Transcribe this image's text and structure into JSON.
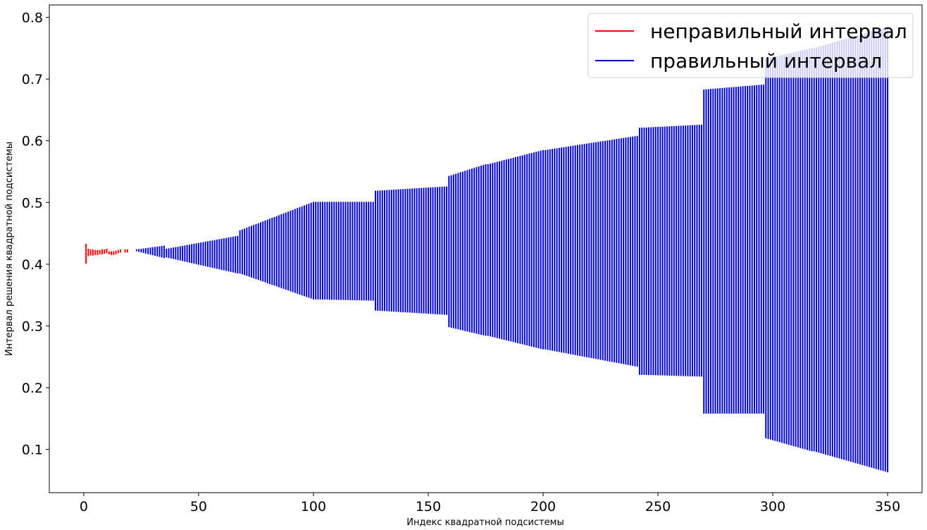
{
  "chart_data": {
    "type": "errorbar-interval",
    "title": "",
    "xlabel": "Индекс квадратной подсистемы",
    "ylabel": "Интервал решения квадратной подсистемы",
    "xlim": [
      -15,
      365
    ],
    "ylim": [
      0.03,
      0.82
    ],
    "xticks": [
      0,
      50,
      100,
      150,
      200,
      250,
      300,
      350
    ],
    "xtick_labels": [
      "0",
      "50",
      "100",
      "150",
      "200",
      "250",
      "300",
      "350"
    ],
    "yticks": [
      0.1,
      0.2,
      0.3,
      0.4,
      0.5,
      0.6,
      0.7,
      0.8
    ],
    "ytick_labels": [
      "0.1",
      "0.2",
      "0.3",
      "0.4",
      "0.5",
      "0.6",
      "0.7",
      "0.8"
    ],
    "legend": {
      "placement": "top-right",
      "entries": [
        {
          "label": "неправильный интервал",
          "color": "#ff0000"
        },
        {
          "label": "правильный интервал",
          "color": "#0000cc"
        }
      ]
    },
    "series": [
      {
        "name": "неправильный интервал",
        "color": "#ff0000",
        "x": [
          1,
          2,
          3,
          4,
          5,
          6,
          7,
          8,
          9,
          10,
          11,
          12,
          13,
          14,
          15,
          16,
          18,
          19
        ],
        "lower": [
          0.401,
          0.413,
          0.414,
          0.414,
          0.415,
          0.415,
          0.416,
          0.416,
          0.417,
          0.418,
          0.416,
          0.415,
          0.415,
          0.416,
          0.418,
          0.419,
          0.419,
          0.419
        ],
        "upper": [
          0.433,
          0.425,
          0.424,
          0.424,
          0.423,
          0.423,
          0.423,
          0.424,
          0.424,
          0.425,
          0.421,
          0.421,
          0.421,
          0.422,
          0.423,
          0.424,
          0.424,
          0.424
        ]
      },
      {
        "name": "правильный интервал",
        "color": "#0000cc",
        "segments": [
          {
            "from": 23,
            "to": 35,
            "lower": [
              0.421,
              0.41
            ],
            "upper": [
              0.424,
              0.43
            ]
          },
          {
            "from": 36,
            "to": 67,
            "lower": [
              0.411,
              0.385
            ],
            "upper": [
              0.425,
              0.446
            ]
          },
          {
            "from": 68,
            "to": 100,
            "lower": [
              0.385,
              0.343
            ],
            "upper": [
              0.455,
              0.501
            ]
          },
          {
            "from": 101,
            "to": 126,
            "lower": [
              0.343,
              0.341
            ],
            "upper": [
              0.501,
              0.501
            ]
          },
          {
            "from": 127,
            "to": 158,
            "lower": [
              0.325,
              0.318
            ],
            "upper": [
              0.519,
              0.526
            ]
          },
          {
            "from": 159,
            "to": 175,
            "lower": [
              0.298,
              0.284
            ],
            "upper": [
              0.543,
              0.562
            ]
          },
          {
            "from": 176,
            "to": 200,
            "lower": [
              0.284,
              0.262
            ],
            "upper": [
              0.562,
              0.585
            ]
          },
          {
            "from": 201,
            "to": 241,
            "lower": [
              0.262,
              0.234
            ],
            "upper": [
              0.585,
              0.608
            ]
          },
          {
            "from": 242,
            "to": 269,
            "lower": [
              0.221,
              0.218
            ],
            "upper": [
              0.621,
              0.626
            ]
          },
          {
            "from": 270,
            "to": 296,
            "lower": [
              0.158,
              0.158
            ],
            "upper": [
              0.683,
              0.691
            ]
          },
          {
            "from": 297,
            "to": 317,
            "lower": [
              0.118,
              0.097
            ],
            "upper": [
              0.733,
              0.75
            ]
          },
          {
            "from": 318,
            "to": 350,
            "lower": [
              0.097,
              0.063
            ],
            "upper": [
              0.75,
              0.785
            ]
          }
        ]
      }
    ]
  }
}
